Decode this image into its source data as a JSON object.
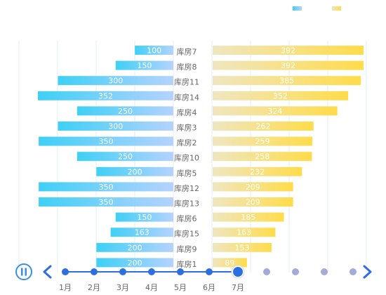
{
  "chart_data": {
    "type": "bar",
    "layout": "butterfly",
    "categories": [
      "库房7",
      "库房8",
      "库房11",
      "库房14",
      "库房4",
      "库房3",
      "库房2",
      "库房10",
      "库房5",
      "库房12",
      "库房13",
      "库房6",
      "库房15",
      "库房9",
      "库房1"
    ],
    "series": [
      {
        "values": [
          100,
          150,
          300,
          352,
          250,
          300,
          350,
          250,
          200,
          350,
          350,
          150,
          163,
          200,
          200
        ],
        "color_start": "#3fd0f5",
        "color_end": "#b5d2ff"
      },
      {
        "values": [
          392,
          392,
          385,
          352,
          324,
          262,
          259,
          258,
          232,
          209,
          209,
          185,
          163,
          153,
          89
        ],
        "color_start": "#efe6c0",
        "color_end": "#ffdc4a"
      }
    ],
    "left_xlim": [
      0,
      352
    ],
    "right_xlim": [
      0,
      392
    ],
    "grid": true,
    "legend_position": "top-right"
  },
  "timeline": {
    "labels": [
      "1月",
      "2月",
      "3月",
      "4月",
      "5月",
      "6月",
      "7月"
    ],
    "current_index": 6,
    "total_steps": 11,
    "active_color": "#2e6fe0",
    "inactive_color": "#a3acd6"
  },
  "icons": {
    "play_pause": "pause-icon",
    "prev": "chevron-left-icon",
    "next": "chevron-right-icon"
  }
}
